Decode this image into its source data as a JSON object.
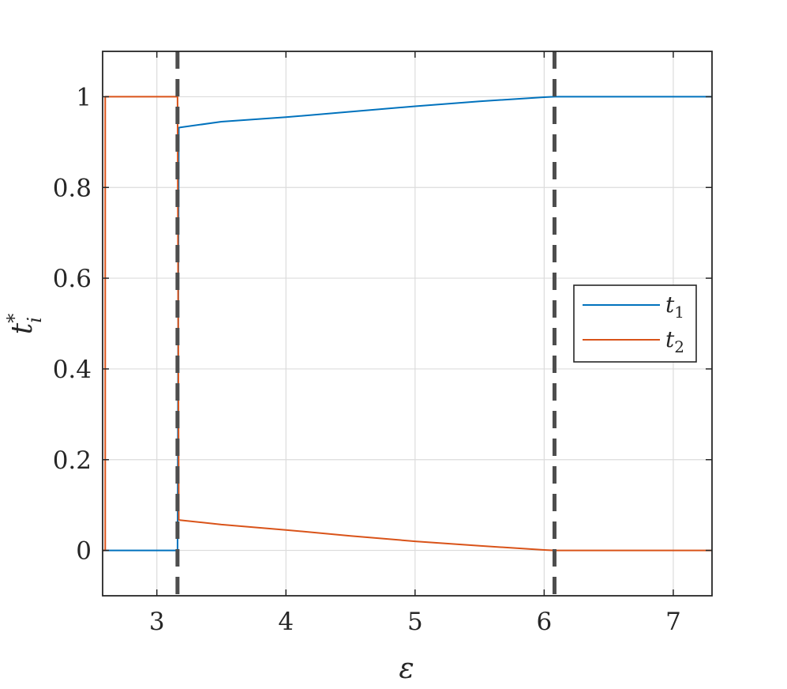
{
  "chart_data": {
    "type": "line",
    "xlabel": "ε",
    "ylabel": {
      "base": "t",
      "sup": "*",
      "sub": "i"
    },
    "xlim": [
      2.58,
      7.3
    ],
    "ylim": [
      -0.1,
      1.1
    ],
    "xticks": [
      3,
      4,
      5,
      6,
      7
    ],
    "yticks": [
      0,
      0.2,
      0.4,
      0.6,
      0.8,
      1
    ],
    "ytick_labels": [
      "0",
      "0.2",
      "0.4",
      "0.6",
      "0.8",
      "1"
    ],
    "grid": true,
    "legend_position": "right-middle",
    "series": [
      {
        "name": "t1",
        "name_base": "t",
        "name_sub": "1",
        "color": "#0072BD",
        "points": [
          [
            2.58,
            0
          ],
          [
            2.6,
            0
          ],
          [
            3.16,
            0
          ],
          [
            3.17,
            0.932
          ],
          [
            3.5,
            0.945
          ],
          [
            4.0,
            0.955
          ],
          [
            4.5,
            0.967
          ],
          [
            5.0,
            0.979
          ],
          [
            5.5,
            0.99
          ],
          [
            6.0,
            0.999
          ],
          [
            6.08,
            1.0
          ],
          [
            7.3,
            1.0
          ]
        ]
      },
      {
        "name": "t2",
        "name_base": "t",
        "name_sub": "2",
        "color": "#D95319",
        "points": [
          [
            2.58,
            0
          ],
          [
            2.6,
            0
          ],
          [
            2.6,
            1.0
          ],
          [
            3.16,
            1.0
          ],
          [
            3.17,
            0.067
          ],
          [
            3.5,
            0.057
          ],
          [
            4.0,
            0.045
          ],
          [
            4.5,
            0.032
          ],
          [
            5.0,
            0.02
          ],
          [
            5.5,
            0.01
          ],
          [
            6.0,
            0.001
          ],
          [
            6.08,
            0
          ],
          [
            7.3,
            0
          ]
        ]
      }
    ],
    "vlines": [
      {
        "x": 3.16,
        "style": "dashed",
        "color": "#4d4d4d"
      },
      {
        "x": 6.08,
        "style": "dashed",
        "color": "#4d4d4d"
      }
    ]
  }
}
